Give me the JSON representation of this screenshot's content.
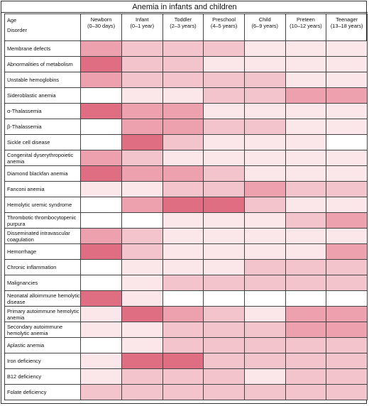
{
  "title": "Anemia in infants and children",
  "corner": {
    "line1": "Age",
    "line2": "Disorder"
  },
  "chart_data": {
    "type": "heatmap",
    "title": "Anemia in infants and children",
    "xlabel": "Age",
    "ylabel": "Disorder",
    "columns": [
      {
        "name": "Newborn",
        "range": "(0–30 days)"
      },
      {
        "name": "Infant",
        "range": "(0–1 year)"
      },
      {
        "name": "Toddler",
        "range": "(2–3 years)"
      },
      {
        "name": "Preschool",
        "range": "(4–5 years)"
      },
      {
        "name": "Child",
        "range": "(6–9 years)"
      },
      {
        "name": "Preteen",
        "range": "(10–12 years)"
      },
      {
        "name": "Teenager",
        "range": "(13–18 years)"
      }
    ],
    "rows": [
      {
        "label": "Membrane defects",
        "values": [
          3,
          2,
          2,
          2,
          1,
          1,
          1
        ]
      },
      {
        "label": "Abnormalities of metabolism",
        "values": [
          4,
          2,
          2,
          1,
          1,
          1,
          1
        ]
      },
      {
        "label": "Unstable hemoglobins",
        "values": [
          3,
          2,
          2,
          2,
          2,
          1,
          1
        ]
      },
      {
        "label": "Sideroblastic anemia",
        "values": [
          0,
          1,
          1,
          2,
          2,
          3,
          3
        ]
      },
      {
        "label": "α-Thalassemia",
        "values": [
          4,
          3,
          3,
          1,
          1,
          1,
          1
        ]
      },
      {
        "label": "β-Thalassemia",
        "values": [
          0,
          3,
          3,
          2,
          2,
          1,
          1
        ]
      },
      {
        "label": "Sickle cell disease",
        "values": [
          0,
          4,
          2,
          1,
          1,
          1,
          0
        ]
      },
      {
        "label": "Congenital dyserythropoietic anemia",
        "values": [
          3,
          2,
          1,
          1,
          1,
          1,
          1
        ]
      },
      {
        "label": "Diamond blackfan anemia",
        "values": [
          4,
          3,
          3,
          2,
          1,
          1,
          1
        ]
      },
      {
        "label": "Fanconi anemia",
        "values": [
          1,
          1,
          2,
          2,
          3,
          2,
          2
        ]
      },
      {
        "label": "Hemolytic uremic syndrome",
        "values": [
          0,
          3,
          4,
          4,
          2,
          1,
          1
        ]
      },
      {
        "label": "Thrombotic thrombocytopenic purpura",
        "values": [
          0,
          0,
          1,
          1,
          1,
          2,
          3
        ]
      },
      {
        "label": "Disseminated intravascular coagulation",
        "values": [
          3,
          2,
          1,
          1,
          1,
          1,
          1
        ]
      },
      {
        "label": "Hemorrhage",
        "values": [
          4,
          2,
          1,
          1,
          1,
          1,
          3
        ]
      },
      {
        "label": "Chronic inflammation",
        "values": [
          0,
          1,
          1,
          1,
          2,
          2,
          2
        ]
      },
      {
        "label": "Malignancies",
        "values": [
          0,
          1,
          2,
          2,
          2,
          2,
          2
        ]
      },
      {
        "label": "Neonatal alloimmune hemolytic disease",
        "values": [
          4,
          1,
          0,
          0,
          0,
          0,
          0
        ]
      },
      {
        "label": "Primary autoimmune hemolytic anemia",
        "values": [
          1,
          4,
          3,
          2,
          1,
          3,
          3
        ]
      },
      {
        "label": "Secondary autoimmune hemolytic anemia",
        "values": [
          1,
          1,
          2,
          2,
          2,
          3,
          3
        ]
      },
      {
        "label": "Aplastic anemia",
        "values": [
          0,
          1,
          2,
          2,
          2,
          2,
          2
        ]
      },
      {
        "label": "Iron deficiency",
        "values": [
          1,
          4,
          4,
          2,
          2,
          2,
          2
        ]
      },
      {
        "label": "B12 deficiency",
        "values": [
          1,
          2,
          2,
          2,
          1,
          2,
          2
        ]
      },
      {
        "label": "Folate deficiency",
        "values": [
          2,
          2,
          2,
          2,
          2,
          2,
          2
        ]
      }
    ],
    "scale": [
      "#ffffff",
      "#fbe6ea",
      "#f4c4cd",
      "#eda1ae",
      "#e06e82"
    ]
  }
}
